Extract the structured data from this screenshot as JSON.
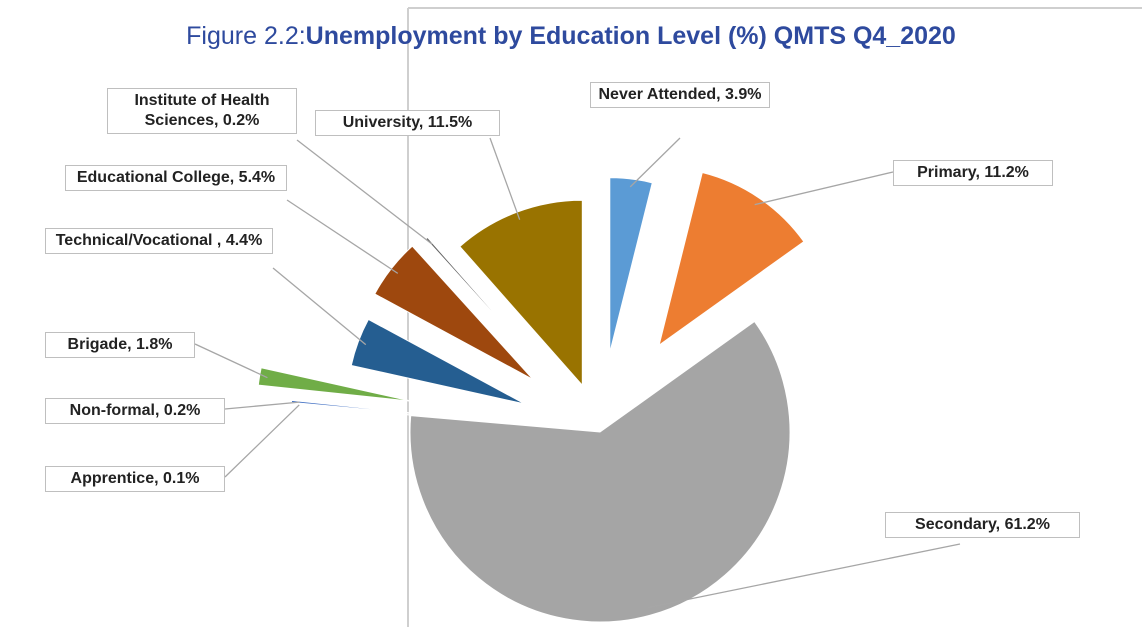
{
  "chart_data": {
    "type": "pie",
    "figure_label": "Figure 2.2:",
    "title": "Unemployment by Education Level (%) QMTS Q4_2020",
    "values": [
      3.9,
      11.2,
      61.2,
      0.1,
      0.2,
      1.8,
      4.4,
      5.4,
      0.2,
      11.5
    ],
    "value_labels": [
      "Never Attended, 3.9%",
      "Primary, 11.2%",
      "Secondary, 61.2%",
      "Apprentice, 0.1%",
      "Non-formal, 0.2%",
      "Brigade, 1.8%",
      "Technical/Vocational , 4.4%",
      "Educational College, 5.4%",
      "Institute of Health Sciences, 0.2%",
      "University, 11.5%"
    ],
    "colors": [
      "#5b9bd5",
      "#ed7d31",
      "#a5a5a5",
      "#ffc000",
      "#4472c4",
      "#70ad47",
      "#255e91",
      "#9e480e",
      "#636363",
      "#997300"
    ]
  }
}
